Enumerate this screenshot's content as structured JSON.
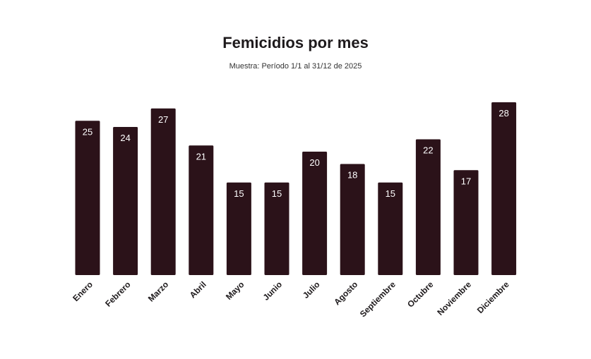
{
  "chart_data": {
    "type": "bar",
    "title": "Femicidios por mes",
    "subtitle": "Muestra: Período 1/1 al 31/12 de 2025",
    "categories": [
      "Enero",
      "Febrero",
      "Marzo",
      "Abril",
      "Mayo",
      "Junio",
      "Julio",
      "Agosto",
      "Septiembre",
      "Octubre",
      "Noviembre",
      "Diciembre"
    ],
    "values": [
      25,
      24,
      27,
      21,
      15,
      15,
      20,
      18,
      15,
      22,
      17,
      28
    ],
    "xlabel": "",
    "ylabel": "",
    "ylim": [
      0,
      28
    ],
    "grid": false,
    "bar_color": "#2b1219",
    "label_color": "#ffffff"
  }
}
